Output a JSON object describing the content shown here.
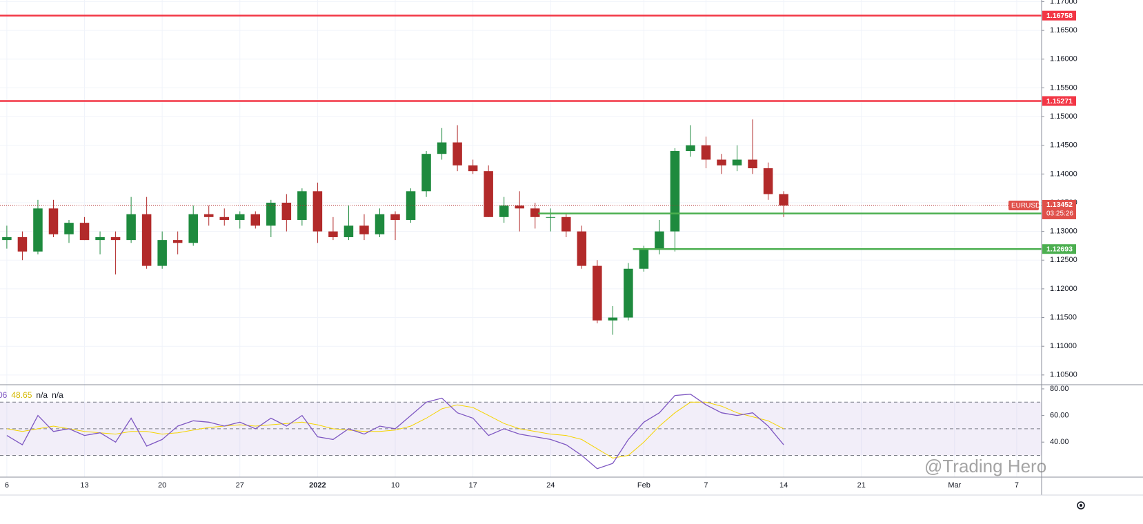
{
  "chart_data": [
    {
      "type": "candlestick",
      "symbol": "EURUSD",
      "countdown": "03:25:26",
      "last_price": 1.13452,
      "x": [
        0,
        1,
        2,
        3,
        4,
        5,
        6,
        7,
        8,
        9,
        10,
        11,
        12,
        13,
        14,
        15,
        16,
        17,
        18,
        19,
        20,
        21,
        22,
        23,
        24,
        25,
        26,
        27,
        28,
        29,
        30,
        31,
        32,
        33,
        34,
        35,
        36,
        37,
        38,
        39,
        40,
        41,
        42,
        43,
        44,
        45,
        46,
        47,
        48,
        49,
        50
      ],
      "open": [
        1.1285,
        1.129,
        1.1265,
        1.134,
        1.1295,
        1.1315,
        1.1285,
        1.129,
        1.1285,
        1.133,
        1.124,
        1.1285,
        1.128,
        1.133,
        1.1325,
        1.132,
        1.133,
        1.131,
        1.135,
        1.132,
        1.137,
        1.13,
        1.129,
        1.131,
        1.1295,
        1.133,
        1.132,
        1.137,
        1.1435,
        1.1455,
        1.1415,
        1.1405,
        1.1325,
        1.1345,
        1.134,
        1.1325,
        1.1325,
        1.13,
        1.124,
        1.1145,
        1.115,
        1.1235,
        1.127,
        1.13,
        1.144,
        1.145,
        1.1425,
        1.1415,
        1.1425,
        1.141,
        1.1365
      ],
      "high": [
        1.131,
        1.13,
        1.1355,
        1.1355,
        1.132,
        1.1325,
        1.13,
        1.13,
        1.136,
        1.136,
        1.13,
        1.13,
        1.1345,
        1.1345,
        1.134,
        1.1335,
        1.1335,
        1.1355,
        1.1365,
        1.1375,
        1.1385,
        1.1325,
        1.1345,
        1.133,
        1.134,
        1.1335,
        1.1375,
        1.144,
        1.148,
        1.1485,
        1.1425,
        1.1415,
        1.136,
        1.137,
        1.135,
        1.134,
        1.133,
        1.131,
        1.125,
        1.117,
        1.1245,
        1.1275,
        1.132,
        1.1445,
        1.1485,
        1.1465,
        1.1435,
        1.145,
        1.1495,
        1.142,
        1.137
      ],
      "low": [
        1.127,
        1.125,
        1.126,
        1.129,
        1.128,
        1.1285,
        1.126,
        1.1225,
        1.128,
        1.1235,
        1.1235,
        1.126,
        1.1275,
        1.131,
        1.131,
        1.1305,
        1.1305,
        1.129,
        1.13,
        1.131,
        1.128,
        1.1285,
        1.1285,
        1.1285,
        1.129,
        1.1285,
        1.1315,
        1.136,
        1.1425,
        1.1405,
        1.14,
        1.1325,
        1.1315,
        1.13,
        1.1305,
        1.13,
        1.129,
        1.1235,
        1.114,
        1.112,
        1.1145,
        1.123,
        1.126,
        1.1265,
        1.143,
        1.141,
        1.14,
        1.1405,
        1.14,
        1.1355,
        1.1325
      ],
      "close": [
        1.129,
        1.1265,
        1.134,
        1.1295,
        1.1315,
        1.1285,
        1.129,
        1.1285,
        1.133,
        1.124,
        1.1285,
        1.128,
        1.133,
        1.1325,
        1.132,
        1.133,
        1.131,
        1.135,
        1.132,
        1.137,
        1.13,
        1.129,
        1.131,
        1.1295,
        1.133,
        1.132,
        1.137,
        1.1435,
        1.1455,
        1.1415,
        1.1405,
        1.1325,
        1.1345,
        1.134,
        1.1325,
        1.1325,
        1.13,
        1.124,
        1.1145,
        1.115,
        1.1235,
        1.127,
        1.13,
        1.144,
        1.145,
        1.1425,
        1.1415,
        1.1425,
        1.141,
        1.1365,
        1.1345
      ],
      "up_color": "#1e8a3e",
      "down_color": "#b22a2a",
      "xlim": [
        -0.44,
        66.6
      ],
      "xticks": [
        {
          "value": 0,
          "label": "6"
        },
        {
          "value": 5,
          "label": "13"
        },
        {
          "value": 10,
          "label": "20"
        },
        {
          "value": 15,
          "label": "27"
        },
        {
          "value": 20,
          "label": "2022"
        },
        {
          "value": 25,
          "label": "10"
        },
        {
          "value": 30,
          "label": "17"
        },
        {
          "value": 35,
          "label": "24"
        },
        {
          "value": 41,
          "label": "Feb"
        },
        {
          "value": 45,
          "label": "7"
        },
        {
          "value": 50,
          "label": "14"
        },
        {
          "value": 55,
          "label": "21"
        },
        {
          "value": 61,
          "label": "Mar"
        },
        {
          "value": 65,
          "label": "7"
        }
      ],
      "ylim": [
        1.1033,
        1.1703
      ],
      "yticks": [
        {
          "value": 1.105,
          "label": "1.10500"
        },
        {
          "value": 1.11,
          "label": "1.11000"
        },
        {
          "value": 1.115,
          "label": "1.11500"
        },
        {
          "value": 1.12,
          "label": "1.12000"
        },
        {
          "value": 1.125,
          "label": "1.12500"
        },
        {
          "value": 1.13,
          "label": "1.13000"
        },
        {
          "value": 1.135,
          "label": "1.13500"
        },
        {
          "value": 1.14,
          "label": "1.14000"
        },
        {
          "value": 1.145,
          "label": "1.14500"
        },
        {
          "value": 1.15,
          "label": "1.15000"
        },
        {
          "value": 1.155,
          "label": "1.15500"
        },
        {
          "value": 1.16,
          "label": "1.16000"
        },
        {
          "value": 1.165,
          "label": "1.16500"
        },
        {
          "value": 1.17,
          "label": "1.17000"
        }
      ],
      "grid": true,
      "levels": [
        {
          "value": 1.16758,
          "color": "#f23645",
          "x_start": -0.44
        },
        {
          "value": 1.15271,
          "color": "#f23645",
          "x_start": -0.44
        },
        {
          "value": 1.13312,
          "color": "#4caf50",
          "x_start": 34.2
        },
        {
          "value": 1.12693,
          "color": "#4caf50",
          "x_start": 40.3
        }
      ]
    },
    {
      "type": "line",
      "legend": [
        "06",
        "48.65",
        "n/a",
        "n/a"
      ],
      "x": [
        0,
        1,
        2,
        3,
        4,
        5,
        6,
        7,
        8,
        9,
        10,
        11,
        12,
        13,
        14,
        15,
        16,
        17,
        18,
        19,
        20,
        21,
        22,
        23,
        24,
        25,
        26,
        27,
        28,
        29,
        30,
        31,
        32,
        33,
        34,
        35,
        36,
        37,
        38,
        39,
        40,
        41,
        42,
        43,
        44,
        45,
        46,
        47,
        48,
        49,
        50
      ],
      "series": [
        {
          "color": "#7e57c2",
          "values": [
            45,
            38,
            60,
            48,
            50,
            45,
            47,
            40,
            58,
            37,
            42,
            52,
            56,
            55,
            52,
            55,
            50,
            58,
            52,
            60,
            44,
            42,
            50,
            46,
            52,
            50,
            60,
            70,
            73,
            62,
            58,
            45,
            50,
            46,
            44,
            42,
            38,
            30,
            20,
            24,
            42,
            55,
            62,
            75,
            76,
            68,
            62,
            60,
            62,
            52,
            38
          ]
        },
        {
          "color": "#f5d400",
          "values": [
            50,
            48,
            50,
            52,
            50,
            48,
            47,
            46,
            48,
            48,
            46,
            47,
            49,
            51,
            52,
            53,
            52,
            53,
            54,
            55,
            53,
            50,
            49,
            48,
            48,
            49,
            52,
            58,
            65,
            68,
            66,
            60,
            54,
            50,
            48,
            46,
            45,
            42,
            35,
            28,
            30,
            40,
            52,
            62,
            70,
            70,
            67,
            62,
            59,
            56,
            50
          ]
        }
      ],
      "ylim": [
        13.7,
        83.1
      ],
      "yticks": [
        {
          "value": 40,
          "label": "40.00"
        },
        {
          "value": 60,
          "label": "60.00"
        },
        {
          "value": 80,
          "label": "80.00"
        }
      ],
      "band": [
        30,
        70
      ],
      "hlines": [
        30,
        50,
        70
      ]
    }
  ],
  "watermark": "@Trading Hero"
}
